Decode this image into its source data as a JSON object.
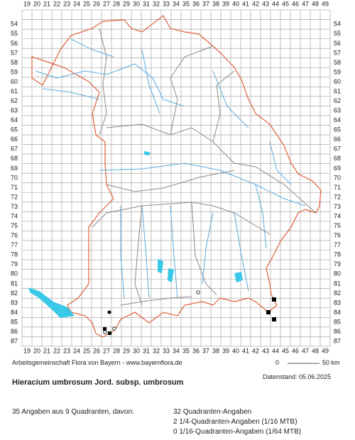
{
  "map": {
    "columns": [
      19,
      20,
      21,
      22,
      23,
      24,
      25,
      26,
      27,
      28,
      29,
      30,
      31,
      32,
      33,
      34,
      35,
      36,
      37,
      38,
      39,
      40,
      41,
      42,
      43,
      44,
      45,
      46,
      47,
      48,
      49
    ],
    "rows": [
      54,
      55,
      56,
      57,
      58,
      59,
      60,
      61,
      62,
      63,
      64,
      65,
      66,
      67,
      68,
      69,
      70,
      71,
      72,
      73,
      74,
      75,
      76,
      77,
      78,
      79,
      80,
      81,
      82,
      83,
      84,
      85,
      86,
      87
    ],
    "credit": "Arbeitsgemeinschaft Flora von Bayern - www.bayernflora.de",
    "scale_start": "0",
    "scale_end": "50 km",
    "date": "Datenstand: 05.06.2025"
  },
  "title": "Hieracium umbrosum Jord. subsp. umbrosum",
  "summary": {
    "total": "35 Angaben aus 9 Quadranten, davon:",
    "lines": [
      "32 Quadranten-Angaben",
      "2 1/4-Quadranten-Angaben (1/16 MTB)",
      "0 1/16-Quadranten-Angaben (1/64 MTB)"
    ]
  }
}
